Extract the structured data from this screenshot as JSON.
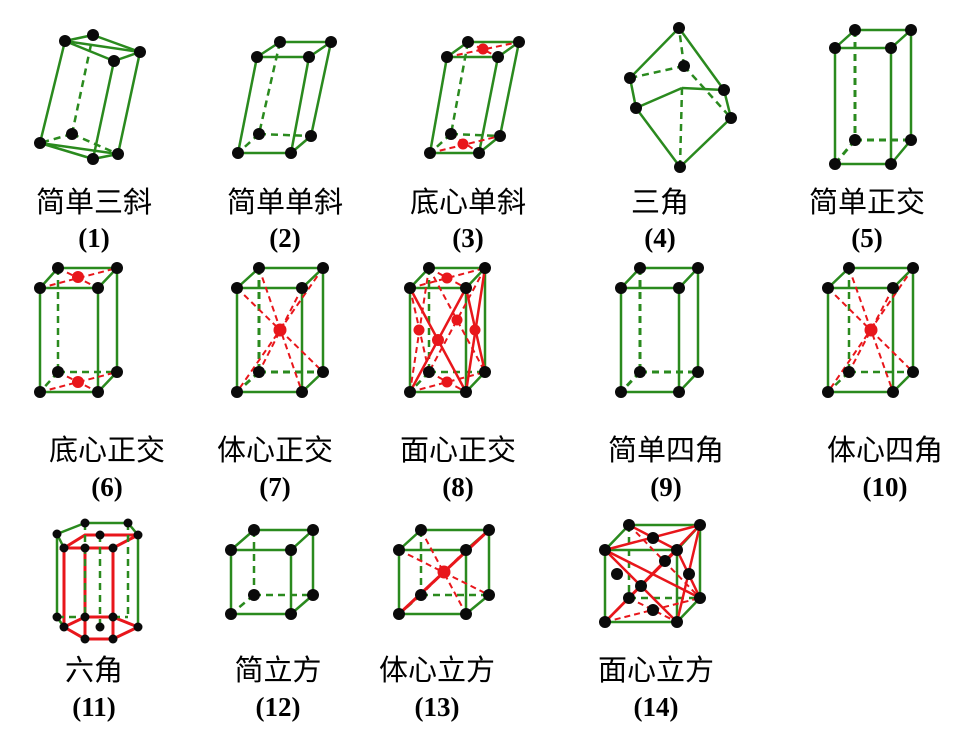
{
  "colors": {
    "edge": "#2a8a1e",
    "highlight": "#e8161b",
    "atom": "#0a0a0a",
    "text": "#000000"
  },
  "lattices": [
    {
      "name": "简单三斜",
      "number": "(1)"
    },
    {
      "name": "简单单斜",
      "number": "(2)"
    },
    {
      "name": "底心单斜",
      "number": "(3)"
    },
    {
      "name": "三角",
      "number": "(4)"
    },
    {
      "name": "简单正交",
      "number": "(5)"
    },
    {
      "name": "底心正交",
      "number": "(6)"
    },
    {
      "name": "体心正交",
      "number": "(7)"
    },
    {
      "name": "面心正交",
      "number": "(8)"
    },
    {
      "name": "简单四角",
      "number": "(9)"
    },
    {
      "name": "体心四角",
      "number": "(10)"
    },
    {
      "name": "六角",
      "number": "(11)"
    },
    {
      "name": "简立方",
      "number": "(12)"
    },
    {
      "name": "体心立方",
      "number": "(13)"
    },
    {
      "name": "面心立方",
      "number": "(14)"
    }
  ]
}
